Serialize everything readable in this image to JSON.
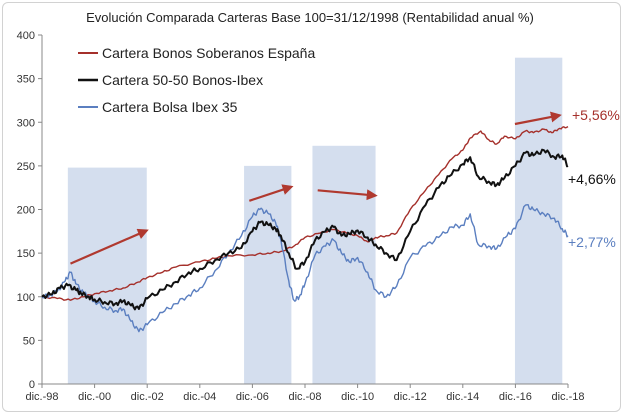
{
  "chart_data": {
    "type": "line",
    "title": "Evolución Comparada Carteras Base 100=31/12/1998 (Rentabilidad anual %)",
    "xlabel": "",
    "ylabel": "",
    "xlim": [
      1998.917,
      2018.917
    ],
    "ylim": [
      0,
      400
    ],
    "y_ticks": [
      0,
      50,
      100,
      150,
      200,
      250,
      300,
      350,
      400
    ],
    "x_ticks": [
      {
        "x": 1998.917,
        "label": "dic.-98"
      },
      {
        "x": 2000.917,
        "label": "dic.-00"
      },
      {
        "x": 2002.917,
        "label": "dic.-02"
      },
      {
        "x": 2004.917,
        "label": "dic.-04"
      },
      {
        "x": 2006.917,
        "label": "dic.-06"
      },
      {
        "x": 2008.917,
        "label": "dic.-08"
      },
      {
        "x": 2010.917,
        "label": "dic.-10"
      },
      {
        "x": 2012.917,
        "label": "dic.-12"
      },
      {
        "x": 2014.917,
        "label": "dic.-14"
      },
      {
        "x": 2016.917,
        "label": "dic.-16"
      },
      {
        "x": 2018.917,
        "label": "dic.-18"
      }
    ],
    "grid": false,
    "legend": "top-left",
    "shaded_periods": [
      {
        "x0": 1999.9,
        "x1": 2002.9,
        "y1": 248
      },
      {
        "x0": 2006.6,
        "x1": 2008.4,
        "y1": 250
      },
      {
        "x0": 2009.2,
        "x1": 2011.6,
        "y1": 273
      },
      {
        "x0": 2016.9,
        "x1": 2018.7,
        "y1": 374
      }
    ],
    "annotations": [
      {
        "from": [
          2000.0,
          138
        ],
        "to": [
          2002.9,
          176
        ]
      },
      {
        "from": [
          2006.8,
          210
        ],
        "to": [
          2008.4,
          226
        ]
      },
      {
        "from": [
          2009.4,
          222
        ],
        "to": [
          2011.6,
          216
        ]
      },
      {
        "from": [
          2016.9,
          298
        ],
        "to": [
          2018.6,
          308
        ]
      }
    ],
    "series": [
      {
        "name": "Cartera Bonos Soberanos España",
        "color": "#a5302b",
        "end_label": "+5,56%",
        "x": [
          1998.917,
          1999.5,
          2000.0,
          2000.5,
          2001.0,
          2001.5,
          2002.0,
          2002.5,
          2002.917,
          2003.5,
          2004.0,
          2004.917,
          2005.5,
          2006.0,
          2006.917,
          2007.5,
          2008.0,
          2008.5,
          2008.917,
          2009.5,
          2010.0,
          2010.5,
          2010.917,
          2011.3,
          2011.6,
          2012.0,
          2012.4,
          2012.917,
          2013.5,
          2014.0,
          2014.5,
          2014.917,
          2015.2,
          2015.6,
          2015.9,
          2016.2,
          2016.5,
          2016.917,
          2017.3,
          2017.6,
          2018.0,
          2018.3,
          2018.6,
          2018.917
        ],
        "y": [
          100,
          98,
          96,
          100,
          104,
          107,
          110,
          116,
          122,
          128,
          134,
          140,
          144,
          147,
          148,
          150,
          152,
          158,
          168,
          173,
          177,
          173,
          170,
          163,
          168,
          170,
          173,
          200,
          222,
          240,
          258,
          268,
          282,
          290,
          280,
          275,
          284,
          281,
          290,
          288,
          292,
          288,
          293,
          295
        ]
      },
      {
        "name": "Cartera 50-50 Bonos-Ibex",
        "color": "#111111",
        "end_label": "+4,66%",
        "x": [
          1998.917,
          1999.3,
          1999.6,
          1999.9,
          2000.2,
          2000.4,
          2000.7,
          2000.917,
          2001.3,
          2001.7,
          2002.0,
          2002.3,
          2002.6,
          2002.917,
          2003.5,
          2004.0,
          2004.5,
          2004.917,
          2005.5,
          2006.0,
          2006.5,
          2006.917,
          2007.2,
          2007.5,
          2007.8,
          2008.0,
          2008.3,
          2008.6,
          2008.917,
          2009.3,
          2009.7,
          2010.0,
          2010.3,
          2010.6,
          2010.917,
          2011.3,
          2011.6,
          2012.0,
          2012.4,
          2012.917,
          2013.5,
          2014.0,
          2014.4,
          2014.917,
          2015.2,
          2015.5,
          2015.9,
          2016.2,
          2016.5,
          2016.917,
          2017.3,
          2017.6,
          2018.0,
          2018.4,
          2018.7,
          2018.917
        ],
        "y": [
          100,
          103,
          110,
          113,
          108,
          104,
          100,
          97,
          94,
          92,
          95,
          90,
          86,
          98,
          108,
          117,
          128,
          132,
          142,
          150,
          156,
          175,
          185,
          183,
          178,
          170,
          150,
          132,
          140,
          165,
          175,
          180,
          170,
          172,
          176,
          168,
          160,
          150,
          142,
          175,
          205,
          225,
          238,
          252,
          260,
          238,
          232,
          228,
          236,
          250,
          265,
          262,
          268,
          260,
          262,
          250
        ]
      },
      {
        "name": "Cartera Bolsa Ibex 35",
        "color": "#5b7fc0",
        "end_label": "+2,77%",
        "x": [
          1998.917,
          1999.2,
          1999.5,
          1999.8,
          2000.0,
          2000.2,
          2000.5,
          2000.7,
          2000.917,
          2001.3,
          2001.7,
          2002.0,
          2002.3,
          2002.6,
          2002.917,
          2003.5,
          2004.0,
          2004.5,
          2004.917,
          2005.5,
          2006.0,
          2006.5,
          2006.917,
          2007.2,
          2007.5,
          2007.8,
          2008.0,
          2008.3,
          2008.5,
          2008.7,
          2008.917,
          2009.3,
          2009.7,
          2010.0,
          2010.3,
          2010.6,
          2010.917,
          2011.3,
          2011.6,
          2012.0,
          2012.4,
          2012.917,
          2013.5,
          2014.0,
          2014.5,
          2014.917,
          2015.2,
          2015.5,
          2015.9,
          2016.2,
          2016.6,
          2016.917,
          2017.3,
          2017.6,
          2018.0,
          2018.4,
          2018.7,
          2018.917
        ],
        "y": [
          100,
          102,
          106,
          118,
          128,
          115,
          104,
          100,
          95,
          88,
          84,
          86,
          72,
          60,
          68,
          82,
          92,
          102,
          110,
          130,
          150,
          170,
          192,
          200,
          196,
          185,
          165,
          118,
          96,
          100,
          115,
          148,
          158,
          165,
          150,
          140,
          145,
          128,
          108,
          100,
          112,
          145,
          158,
          168,
          180,
          182,
          195,
          160,
          158,
          155,
          170,
          178,
          205,
          200,
          195,
          190,
          178,
          170
        ]
      }
    ]
  }
}
